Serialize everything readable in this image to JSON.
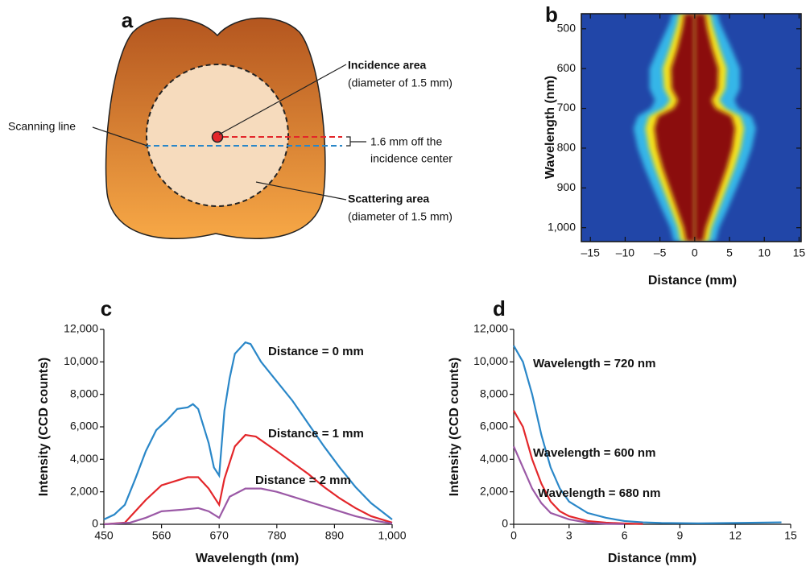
{
  "diagram": {
    "label": "a",
    "incidence_title": "Incidence area",
    "incidence_note": "(diameter of 1.5 mm)",
    "scanning": "Scanning line",
    "offset_1": "1.6 mm off the",
    "offset_2": "incidence center",
    "scattering_title": "Scattering area",
    "scattering_note": "(diameter of 1.5 mm)"
  },
  "chart_data": [
    {
      "type": "heatmap",
      "label": "b",
      "xlabel": "Distance (mm)",
      "ylabel": "Wavelength (nm)",
      "y": [
        462,
        480,
        500,
        550,
        600,
        650,
        680,
        700,
        720,
        750,
        800,
        850,
        900,
        950,
        1000,
        1035
      ],
      "series": [
        {
          "color": "#35b6e8",
          "values": [
            3.3,
            3.5,
            4,
            5.3,
            6.5,
            6.5,
            5.7,
            6.3,
            8.2,
            8.8,
            8.2,
            7.2,
            6,
            4.8,
            3.5,
            3.0
          ]
        },
        {
          "color": "#f4e21c",
          "values": [
            2.3,
            2.4,
            2.7,
            3.6,
            4.6,
            4.4,
            3.5,
            4.4,
            6.6,
            7.1,
            6.6,
            5.7,
            4.6,
            3.5,
            2.4,
            2.0
          ]
        },
        {
          "color": "#8b0a0a",
          "values": [
            1.5,
            1.6,
            1.8,
            2.5,
            3.4,
            3.3,
            2.4,
            3.0,
            5.3,
            5.8,
            5.4,
            4.6,
            3.6,
            2.6,
            1.6,
            1.2
          ]
        }
      ],
      "background": "#2146a8",
      "xlim": [
        -16.3,
        15.3
      ],
      "xticks": [
        {
          "value": -15,
          "label": "–15"
        },
        {
          "value": -10,
          "label": "–10"
        },
        {
          "value": -5,
          "label": "–5"
        },
        0,
        5,
        10,
        15
      ],
      "ylim": [
        462,
        1035
      ],
      "y_inverted": true,
      "yticks": [
        500,
        600,
        700,
        800,
        900,
        {
          "value": 1000,
          "label": "1,000"
        }
      ]
    },
    {
      "type": "line",
      "label": "c",
      "xlabel": "Wavelength (nm)",
      "ylabel": "Intensity (CCD counts)",
      "series": [
        {
          "name": "Distance = 0 mm",
          "color": "#2a87c8",
          "x": [
            450,
            470,
            490,
            510,
            530,
            550,
            570,
            590,
            610,
            620,
            630,
            650,
            660,
            670,
            680,
            690,
            700,
            720,
            730,
            750,
            780,
            810,
            840,
            870,
            900,
            930,
            960,
            1000
          ],
          "values": [
            300,
            600,
            1200,
            2800,
            4500,
            5800,
            6400,
            7100,
            7200,
            7400,
            7100,
            5000,
            3500,
            3000,
            7000,
            9000,
            10500,
            11200,
            11100,
            10000,
            8800,
            7600,
            6200,
            4800,
            3500,
            2300,
            1300,
            300
          ]
        },
        {
          "name": "Distance = 1 mm",
          "color": "#e3262a",
          "x": [
            450,
            490,
            510,
            530,
            560,
            590,
            610,
            630,
            650,
            670,
            680,
            700,
            720,
            740,
            780,
            810,
            840,
            870,
            900,
            930,
            960,
            1000
          ],
          "values": [
            0,
            100,
            800,
            1500,
            2400,
            2700,
            2900,
            2900,
            2200,
            1200,
            2800,
            4800,
            5500,
            5400,
            4500,
            3800,
            3100,
            2300,
            1600,
            1000,
            500,
            100
          ]
        },
        {
          "name": "Distance = 2 mm",
          "color": "#9b59a6",
          "x": [
            450,
            500,
            530,
            560,
            600,
            630,
            650,
            670,
            690,
            720,
            750,
            780,
            810,
            850,
            890,
            930,
            970,
            1000
          ],
          "values": [
            0,
            100,
            400,
            800,
            900,
            1000,
            800,
            400,
            1700,
            2200,
            2200,
            2000,
            1700,
            1300,
            900,
            500,
            200,
            50
          ]
        }
      ],
      "xlim": [
        450,
        1000
      ],
      "xticks": [
        450,
        560,
        670,
        780,
        890,
        {
          "value": 1000,
          "label": "1,000"
        }
      ],
      "ylim": [
        0,
        12000
      ],
      "yticks": [
        0,
        {
          "value": 2000,
          "label": "2,000"
        },
        {
          "value": 4000,
          "label": "4,000"
        },
        {
          "value": 6000,
          "label": "6,000"
        },
        {
          "value": 8000,
          "label": "8,000"
        },
        {
          "value": 10000,
          "label": "10,000"
        },
        {
          "value": 12000,
          "label": "12,000"
        }
      ]
    },
    {
      "type": "line",
      "label": "d",
      "xlabel": "Distance (mm)",
      "ylabel": "Intensity (CCD counts)",
      "series": [
        {
          "name": "Wavelength = 720 nm",
          "color": "#2a87c8",
          "x": [
            0,
            0.5,
            1,
            1.5,
            2,
            2.5,
            3,
            4,
            5,
            6,
            7,
            8,
            10,
            12,
            14.5
          ],
          "values": [
            11000,
            10000,
            8000,
            5500,
            3500,
            2200,
            1400,
            700,
            400,
            200,
            120,
            80,
            60,
            80,
            120
          ]
        },
        {
          "name": "Wavelength = 600 nm",
          "color": "#e3262a",
          "x": [
            0,
            0.5,
            1,
            1.5,
            2,
            2.5,
            3,
            4,
            5,
            6,
            7
          ],
          "values": [
            7000,
            6000,
            4000,
            2500,
            1400,
            800,
            500,
            200,
            100,
            50,
            20
          ]
        },
        {
          "name": "Wavelength = 680 nm",
          "color": "#9b59a6",
          "x": [
            0,
            0.5,
            1,
            1.5,
            2,
            3,
            4,
            5,
            6
          ],
          "values": [
            4800,
            3500,
            2200,
            1300,
            700,
            300,
            100,
            30,
            10
          ]
        }
      ],
      "xlim": [
        0,
        15
      ],
      "xticks": [
        0,
        3,
        6,
        9,
        12,
        15
      ],
      "ylim": [
        0,
        12000
      ],
      "yticks": [
        0,
        {
          "value": 2000,
          "label": "2,000"
        },
        {
          "value": 4000,
          "label": "4,000"
        },
        {
          "value": 6000,
          "label": "6,000"
        },
        {
          "value": 8000,
          "label": "8,000"
        },
        {
          "value": 10000,
          "label": "10,000"
        },
        {
          "value": 12000,
          "label": "12,000"
        }
      ]
    }
  ]
}
